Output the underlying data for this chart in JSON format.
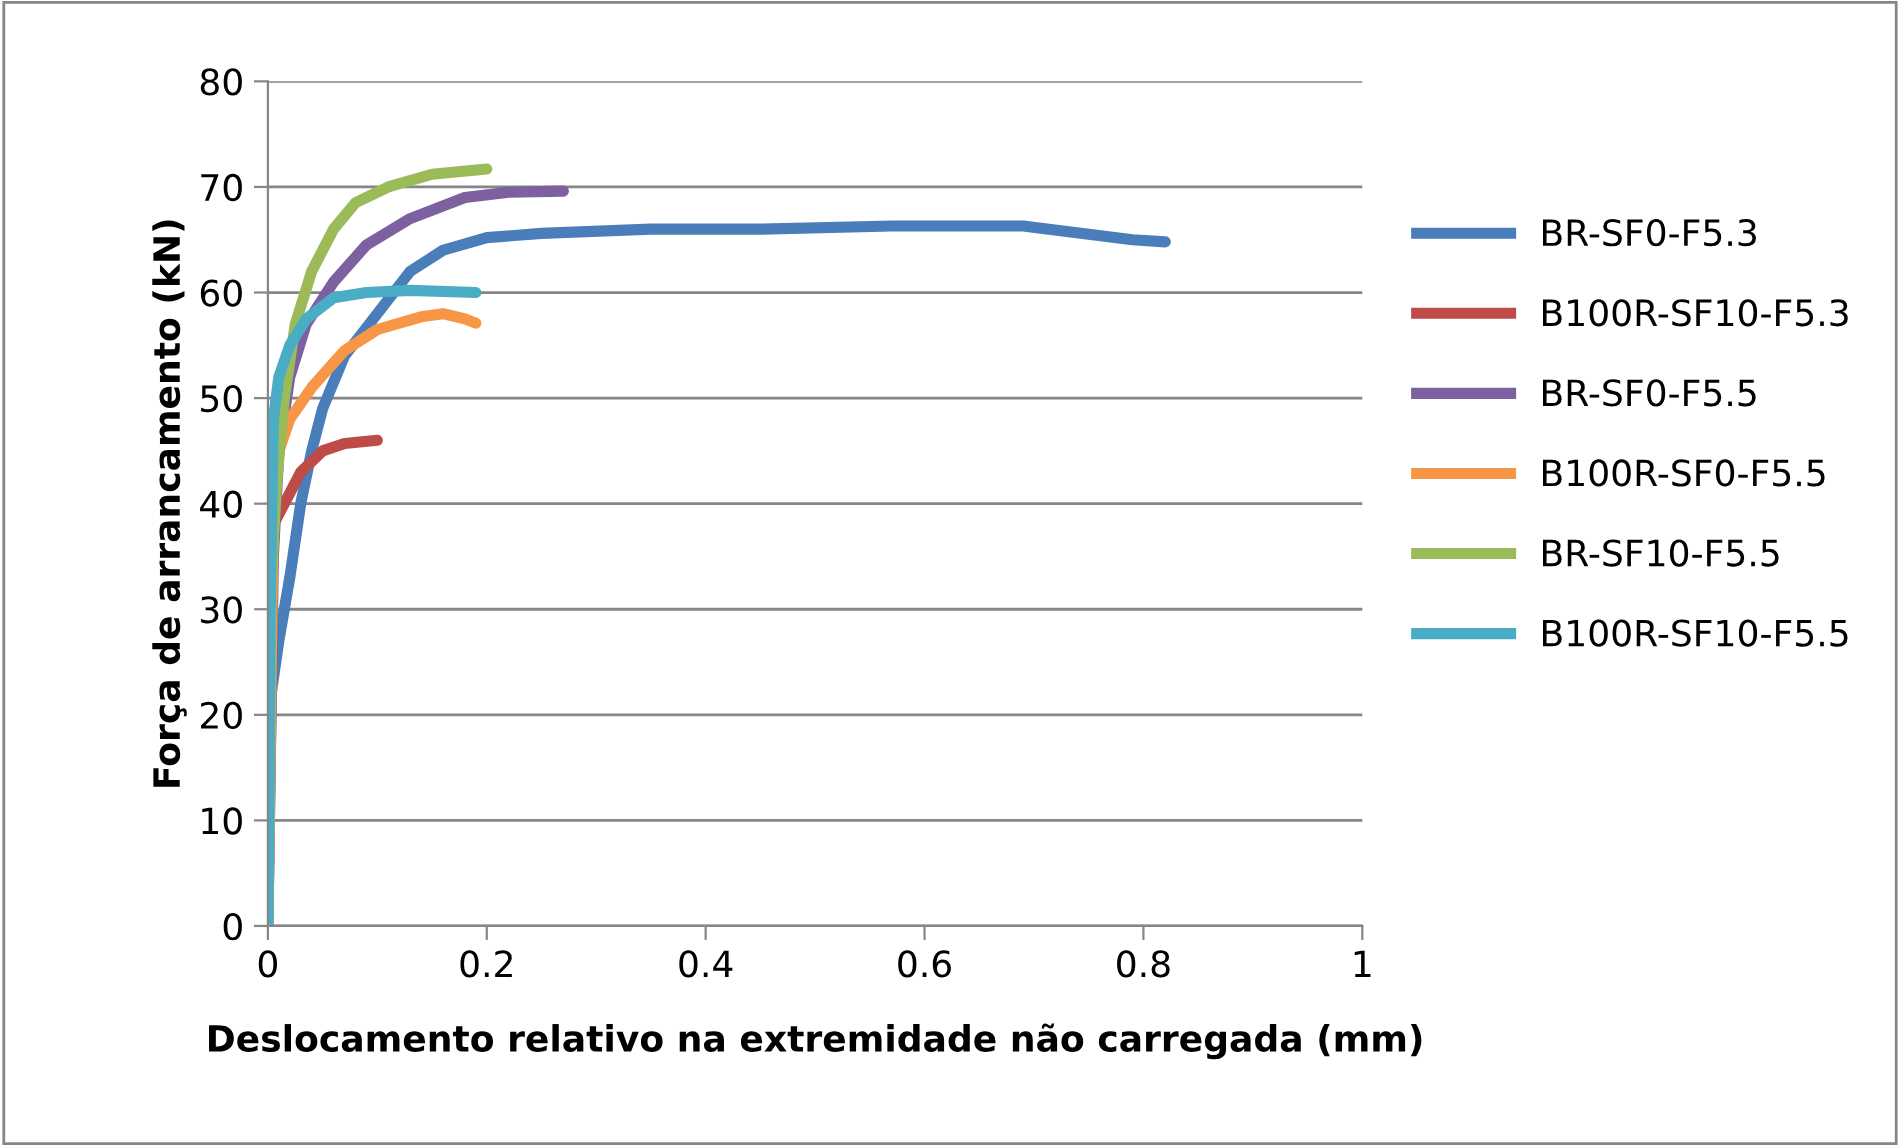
{
  "chart_data": {
    "type": "line",
    "xlabel": "Deslocamento relativo na extremidade não carregada (mm)",
    "ylabel": "Força de arrancamento (kN)",
    "xlim": [
      0,
      1
    ],
    "xticks": [
      0,
      {
        "value": 0.2,
        "label": "0.2"
      },
      {
        "value": 0.4,
        "label": "0.4"
      },
      {
        "value": 0.6,
        "label": "0.6"
      },
      {
        "value": 0.8,
        "label": "0.8"
      },
      1
    ],
    "ylim": [
      0,
      80
    ],
    "yticks": [
      0,
      10,
      20,
      30,
      40,
      50,
      60,
      70,
      80
    ],
    "grid": "y",
    "legend": "right",
    "marker": "none",
    "line_style": "solid",
    "series": [
      {
        "name": "BR-SF0-F5.3",
        "color": "#4a7ebb",
        "x": [
          0,
          0.003,
          0.01,
          0.02,
          0.03,
          0.04,
          0.05,
          0.07,
          0.1,
          0.13,
          0.16,
          0.2,
          0.25,
          0.35,
          0.45,
          0.57,
          0.69,
          0.79,
          0.82
        ],
        "values": [
          0,
          22,
          27,
          33,
          40,
          45,
          49,
          54,
          58,
          62,
          64,
          65.2,
          65.6,
          66,
          66,
          66.3,
          66.3,
          65,
          64.8
        ]
      },
      {
        "name": "B100R-SF10-F5.3",
        "color": "#be4b48",
        "x": [
          0.005,
          0.02,
          0.03,
          0.05,
          0.07,
          0.1
        ],
        "values": [
          38,
          41,
          43,
          45,
          45.7,
          46
        ]
      },
      {
        "name": "BR-SF0-F5.5",
        "color": "#7d60a0",
        "x": [
          0,
          0.005,
          0.01,
          0.02,
          0.035,
          0.06,
          0.09,
          0.13,
          0.18,
          0.22,
          0.27
        ],
        "values": [
          0,
          35,
          45,
          52,
          57,
          61,
          64.5,
          67,
          69,
          69.5,
          69.6
        ]
      },
      {
        "name": "B100R-SF0-F5.5",
        "color": "#f79646",
        "x": [
          0,
          0.005,
          0.01,
          0.02,
          0.04,
          0.07,
          0.1,
          0.14,
          0.16,
          0.18,
          0.19
        ],
        "values": [
          0,
          40,
          45,
          48,
          51,
          54.5,
          56.5,
          57.7,
          58,
          57.5,
          57.1
        ]
      },
      {
        "name": "BR-SF10-F5.5",
        "color": "#9bbb59",
        "x": [
          0,
          0.003,
          0.008,
          0.015,
          0.025,
          0.04,
          0.06,
          0.08,
          0.11,
          0.15,
          0.2
        ],
        "values": [
          0,
          33,
          42,
          50,
          57,
          62,
          66,
          68.5,
          70,
          71.2,
          71.7
        ]
      },
      {
        "name": "B100R-SF10-F5.5",
        "color": "#4bacc6",
        "x": [
          0,
          0.002,
          0.005,
          0.01,
          0.02,
          0.035,
          0.06,
          0.09,
          0.13,
          0.19
        ],
        "values": [
          0,
          30,
          48,
          52,
          55,
          57.5,
          59.5,
          60,
          60.2,
          60
        ]
      }
    ]
  }
}
